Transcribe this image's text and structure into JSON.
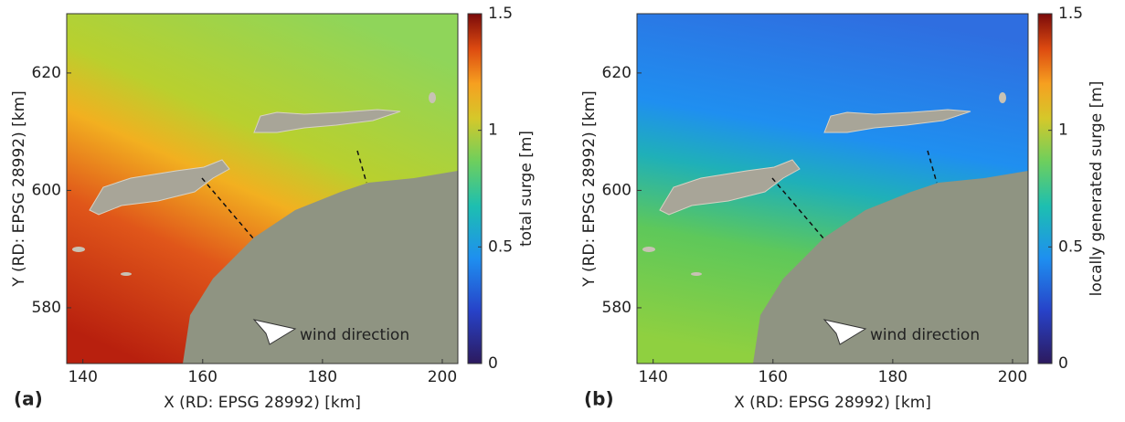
{
  "chart_data": [
    {
      "type": "map",
      "panel_label": "(a)",
      "xlabel": "X (RD: EPSG 28992) [km]",
      "ylabel": "Y (RD: EPSG 28992) [km]",
      "xlim": [
        137.3,
        202.6
      ],
      "ylim": [
        570.5,
        630.1
      ],
      "xticks": [
        140,
        160,
        180,
        200
      ],
      "yticks": [
        580,
        600,
        620
      ],
      "colorbar": {
        "label": "total surge [m]",
        "lim": [
          0,
          1.5
        ],
        "ticks": [
          0,
          0.5,
          1,
          1.5
        ]
      },
      "annotation": "wind direction"
    },
    {
      "type": "map",
      "panel_label": "(b)",
      "xlabel": "X (RD: EPSG 28992) [km]",
      "ylabel": "Y (RD: EPSG 28992) [km]",
      "xlim": [
        137.3,
        202.6
      ],
      "ylim": [
        570.5,
        630.1
      ],
      "xticks": [
        140,
        160,
        180,
        200
      ],
      "yticks": [
        580,
        600,
        620
      ],
      "colorbar": {
        "label": "locally generated surge [m]",
        "lim": [
          0,
          1.5
        ],
        "ticks": [
          0,
          0.5,
          1,
          1.5
        ]
      },
      "annotation": "wind direction"
    }
  ]
}
